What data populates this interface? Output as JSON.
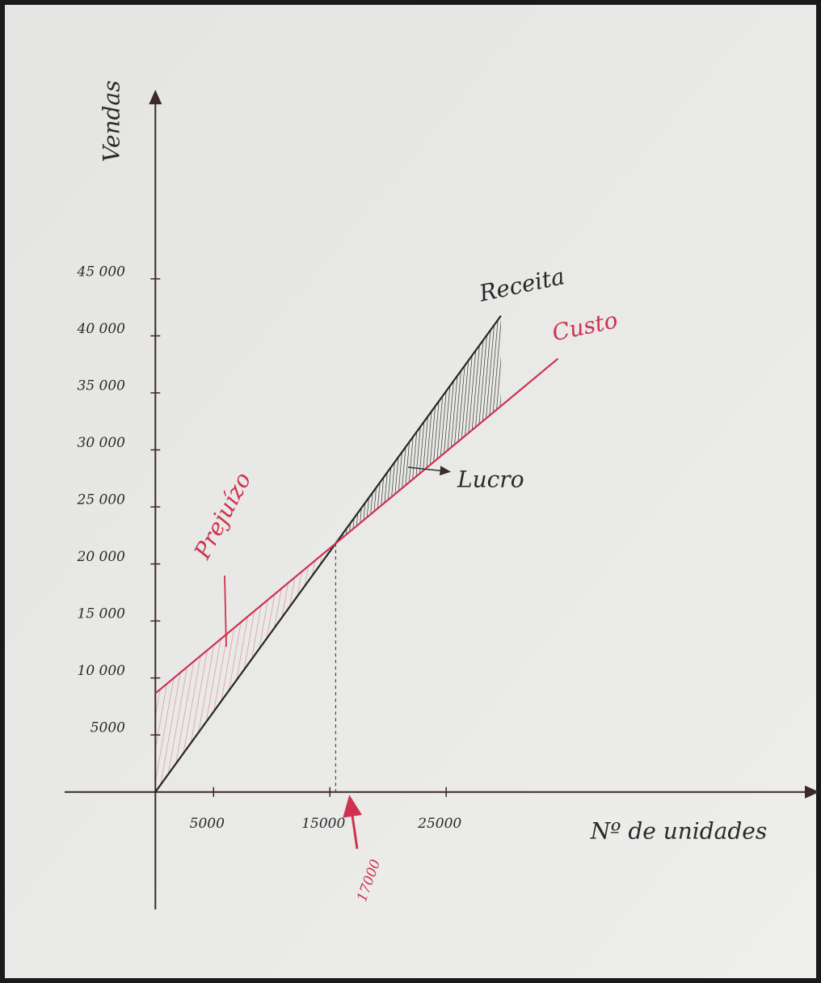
{
  "chart_data": {
    "type": "line",
    "x_label": "Nº de unidades",
    "y_label": "Vendas",
    "x": [
      0,
      15500,
      29700,
      34600
    ],
    "series": [
      {
        "name": "Receita",
        "color": "#262626",
        "values": [
          0,
          21800,
          41760,
          null
        ]
      },
      {
        "name": "Custo",
        "color": "#d0314f",
        "values": [
          8650,
          21800,
          33840,
          38000
        ]
      }
    ],
    "xlim": [
      -7800,
      56800
    ],
    "ylim": [
      -10300,
      61300
    ],
    "xticks": [
      5000,
      15000,
      25000
    ],
    "yticks": [
      5000,
      {
        "value": 10000,
        "label": "10 000"
      },
      {
        "value": 15000,
        "label": "15 000"
      },
      {
        "value": 20000,
        "label": "20 000"
      },
      {
        "value": 25000,
        "label": "25 000"
      },
      {
        "value": 30000,
        "label": "30 000"
      },
      {
        "value": 35000,
        "label": "35 000"
      },
      {
        "value": 40000,
        "label": "40 000"
      },
      {
        "value": 45000,
        "label": "45 000"
      }
    ],
    "annotations": [
      "Prejuízo",
      "Lucro",
      "17000"
    ],
    "grid": false
  }
}
